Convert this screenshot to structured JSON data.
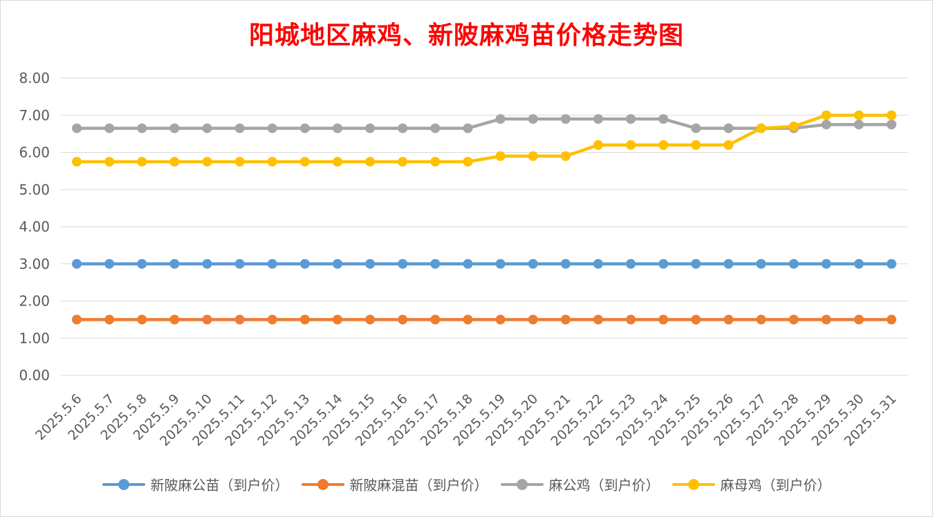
{
  "chart_data": {
    "type": "line",
    "title": "阳城地区麻鸡、新陂麻鸡苗价格走势图",
    "xlabel": "",
    "ylabel": "",
    "ylim": [
      0,
      8
    ],
    "yticks": [
      "0.00",
      "1.00",
      "2.00",
      "3.00",
      "4.00",
      "5.00",
      "6.00",
      "7.00",
      "8.00"
    ],
    "grid": true,
    "legend_position": "bottom",
    "categories": [
      "2025.5.6",
      "2025.5.7",
      "2025.5.8",
      "2025.5.9",
      "2025.5.10",
      "2025.5.11",
      "2025.5.12",
      "2025.5.13",
      "2025.5.14",
      "2025.5.15",
      "2025.5.16",
      "2025.5.17",
      "2025.5.18",
      "2025.5.19",
      "2025.5.20",
      "2025.5.21",
      "2025.5.22",
      "2025.5.23",
      "2025.5.24",
      "2025.5.25",
      "2025.5.26",
      "2025.5.27",
      "2025.5.28",
      "2025.5.29",
      "2025.5.30",
      "2025.5.31"
    ],
    "series": [
      {
        "name": "新陂麻公苗（到户价）",
        "color": "#5b9bd5",
        "values": [
          3.0,
          3.0,
          3.0,
          3.0,
          3.0,
          3.0,
          3.0,
          3.0,
          3.0,
          3.0,
          3.0,
          3.0,
          3.0,
          3.0,
          3.0,
          3.0,
          3.0,
          3.0,
          3.0,
          3.0,
          3.0,
          3.0,
          3.0,
          3.0,
          3.0,
          3.0
        ]
      },
      {
        "name": "新陂麻混苗（到户价）",
        "color": "#ed7d31",
        "values": [
          1.5,
          1.5,
          1.5,
          1.5,
          1.5,
          1.5,
          1.5,
          1.5,
          1.5,
          1.5,
          1.5,
          1.5,
          1.5,
          1.5,
          1.5,
          1.5,
          1.5,
          1.5,
          1.5,
          1.5,
          1.5,
          1.5,
          1.5,
          1.5,
          1.5,
          1.5
        ]
      },
      {
        "name": "麻公鸡（到户价）",
        "color": "#a5a5a5",
        "values": [
          6.65,
          6.65,
          6.65,
          6.65,
          6.65,
          6.65,
          6.65,
          6.65,
          6.65,
          6.65,
          6.65,
          6.65,
          6.65,
          6.9,
          6.9,
          6.9,
          6.9,
          6.9,
          6.9,
          6.65,
          6.65,
          6.65,
          6.65,
          6.75,
          6.75,
          6.75
        ]
      },
      {
        "name": "麻母鸡（到户价）",
        "color": "#ffc000",
        "values": [
          5.75,
          5.75,
          5.75,
          5.75,
          5.75,
          5.75,
          5.75,
          5.75,
          5.75,
          5.75,
          5.75,
          5.75,
          5.75,
          5.9,
          5.9,
          5.9,
          6.2,
          6.2,
          6.2,
          6.2,
          6.2,
          6.65,
          6.7,
          7.0,
          7.0,
          7.0
        ]
      }
    ]
  }
}
